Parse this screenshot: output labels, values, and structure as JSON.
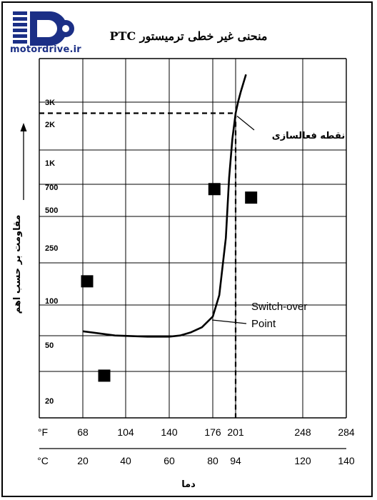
{
  "logo": {
    "text": "motordrive.ir"
  },
  "chart_data": {
    "type": "line",
    "title": "منحنی غیر خطی ترمیستور PTC",
    "ylabel": "مقاومت بر حسب اهم",
    "xlabel": "دما",
    "y_ticks": [
      "3K",
      "2K",
      "1K",
      "700",
      "500",
      "250",
      "100",
      "50",
      "20"
    ],
    "y_scale": "log",
    "x_ticks_f": [
      "68",
      "104",
      "140",
      "176",
      "201",
      "248",
      "284"
    ],
    "x_ticks_c": [
      "20",
      "40",
      "60",
      "80",
      "94",
      "120",
      "140"
    ],
    "x_unit_f": "°F",
    "x_unit_c": "°C",
    "series": [
      {
        "x_c": [
          20,
          35,
          50,
          60,
          65,
          70,
          75,
          80,
          84,
          88,
          90,
          92,
          94,
          95,
          96,
          98
        ],
        "y": [
          62,
          58,
          57,
          57,
          58,
          61,
          66,
          78,
          110,
          300,
          800,
          1500,
          2400,
          3000,
          3600,
          5000
        ]
      }
    ],
    "markers": [
      {
        "x_c": 22,
        "y": 140
      },
      {
        "x_c": 30,
        "y": 30
      },
      {
        "x_c": 81,
        "y": 680
      },
      {
        "x_c": 100,
        "y": 600
      }
    ],
    "switch_point": {
      "x_c": 94,
      "y": 2400
    },
    "annotations": {
      "switch_fa": "نقطه فعالسازی",
      "switch_en_1": "Switch-over",
      "switch_en_2": "Point"
    }
  }
}
